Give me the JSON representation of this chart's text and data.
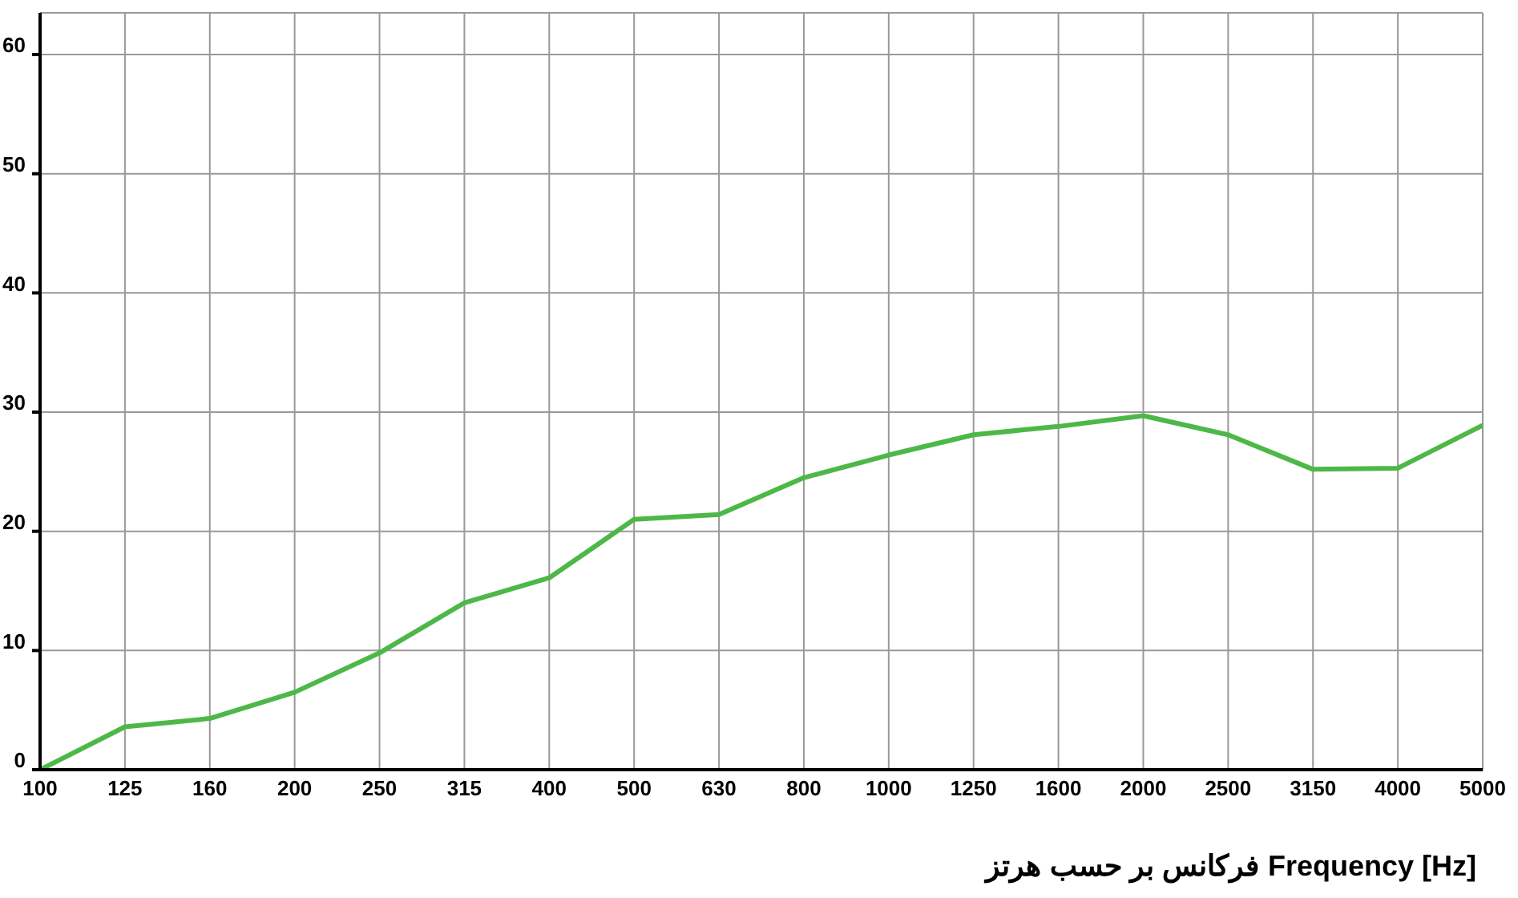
{
  "chart_data": {
    "type": "line",
    "xlabel": "فرکانس  بر حسب هرتز  Frequency [Hz]",
    "categories": [
      "100",
      "125",
      "160",
      "200",
      "250",
      "315",
      "400",
      "500",
      "630",
      "800",
      "1000",
      "1250",
      "1600",
      "2000",
      "2500",
      "3150",
      "4000",
      "5000"
    ],
    "series": [
      {
        "color": "#4db848",
        "values": [
          0,
          3.6,
          4.3,
          6.5,
          9.8,
          14,
          16.1,
          21,
          21.4,
          24.5,
          26.4,
          28.1,
          28.8,
          29.7,
          28.1,
          25.2,
          25.3,
          28.9
        ]
      }
    ],
    "ylim": [
      0,
      63.5
    ],
    "yticks": [
      0,
      10,
      20,
      30,
      40,
      50,
      60
    ],
    "grid": true,
    "legend": false,
    "marker": "none",
    "line_style": "solid"
  }
}
